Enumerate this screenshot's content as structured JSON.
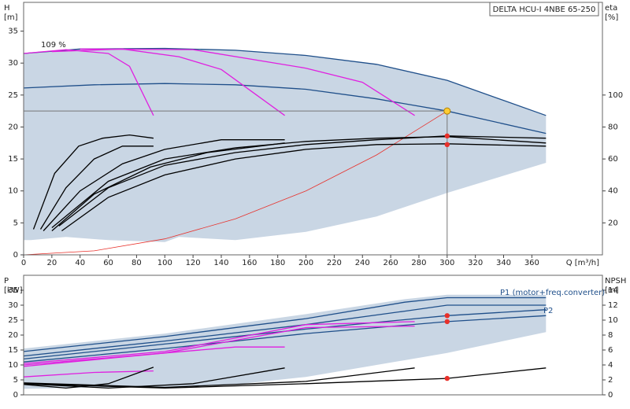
{
  "chart_data": [
    {
      "type": "line",
      "title": "DELTA HCU-I 4NBE 65-250",
      "xlabel": "Q [m³/h]",
      "ylabel": [
        "H",
        "[m]"
      ],
      "y2label": [
        "eta",
        "[%]"
      ],
      "xlim": [
        0,
        410
      ],
      "xticks": [
        0,
        20,
        40,
        60,
        80,
        100,
        120,
        140,
        160,
        180,
        200,
        220,
        240,
        260,
        280,
        300,
        320,
        340,
        360
      ],
      "ylim": [
        0,
        39.5
      ],
      "yticks": [
        0,
        5,
        10,
        15,
        20,
        25,
        30,
        35
      ],
      "y2lim": [
        0,
        158
      ],
      "y2ticks": [
        20,
        40,
        60,
        80,
        100
      ],
      "annotations": [
        "109 %"
      ],
      "series": [
        {
          "color": "#c9d6e4",
          "fill": true,
          "x": [
            0,
            40,
            100,
            150,
            200,
            250,
            300,
            370,
            370,
            300,
            250,
            200,
            150,
            110,
            100,
            60,
            30,
            5,
            0
          ],
          "values": [
            31.5,
            32.2,
            32.3,
            32,
            31.2,
            29.8,
            27.3,
            21.8,
            14.4,
            9.7,
            6,
            3.6,
            2.3,
            2.8,
            2,
            2.3,
            2.8,
            2.3,
            2.3
          ]
        },
        {
          "color": "#1f4f8a",
          "x": [
            0,
            40,
            100,
            150,
            200,
            250,
            300,
            370
          ],
          "values": [
            31.5,
            32.2,
            32.3,
            32,
            31.2,
            29.8,
            27.3,
            21.8
          ]
        },
        {
          "color": "#1f4f8a",
          "x": [
            0,
            50,
            100,
            150,
            200,
            250,
            300,
            370
          ],
          "values": [
            26.1,
            26.6,
            26.8,
            26.6,
            25.9,
            24.4,
            22.5,
            19
          ]
        },
        {
          "color": "#e8302a",
          "x": [
            0,
            50,
            100,
            150,
            200,
            250,
            300
          ],
          "values": [
            0,
            0.63,
            2.5,
            5.63,
            10,
            15.63,
            22.5
          ]
        },
        {
          "color": "#e020e0",
          "x": [
            0,
            30,
            60,
            75,
            92
          ],
          "values": [
            31.5,
            32.1,
            31.5,
            29.5,
            21.8
          ]
        },
        {
          "color": "#e020e0",
          "x": [
            20,
            70,
            110,
            140,
            165,
            185
          ],
          "values": [
            31.8,
            32.2,
            31,
            29,
            25,
            21.8
          ]
        },
        {
          "color": "#e020e0",
          "x": [
            40,
            120,
            200,
            240,
            277
          ],
          "values": [
            32.2,
            32.1,
            29.2,
            27,
            21.8
          ]
        },
        {
          "color": "#000000",
          "axis": "y2",
          "x": [
            7,
            22,
            39,
            56,
            75,
            92
          ],
          "values": [
            16,
            51,
            68,
            73,
            75,
            73
          ]
        },
        {
          "color": "#000000",
          "axis": "y2",
          "x": [
            12,
            30,
            50,
            70,
            92
          ],
          "values": [
            16,
            42,
            60,
            68,
            68
          ]
        },
        {
          "color": "#000000",
          "axis": "y2",
          "x": [
            14,
            40,
            70,
            100,
            140,
            185
          ],
          "values": [
            15,
            40,
            57,
            66,
            72,
            72
          ]
        },
        {
          "color": "#000000",
          "axis": "y2",
          "x": [
            20,
            50,
            90,
            130,
            185
          ],
          "values": [
            15,
            38,
            55,
            64,
            70
          ]
        },
        {
          "color": "#000000",
          "axis": "y2",
          "x": [
            27,
            60,
            100,
            150,
            200,
            250,
            300,
            370
          ],
          "values": [
            15,
            36,
            50,
            60,
            66,
            69,
            69.5,
            68
          ]
        },
        {
          "color": "#000000",
          "axis": "y2",
          "x": [
            25,
            60,
            100,
            150,
            200,
            250,
            300,
            370
          ],
          "values": [
            18,
            42,
            56,
            64,
            69,
            72,
            74.4,
            73
          ]
        },
        {
          "color": "#000000",
          "axis": "y2",
          "x": [
            20,
            60,
            100,
            150,
            200,
            250,
            300,
            370
          ],
          "values": [
            17,
            46,
            60,
            67,
            71,
            73,
            74,
            70
          ]
        }
      ],
      "points": [
        {
          "x": 300,
          "y": 22.5,
          "color": "#ffcc33",
          "guides": true
        },
        {
          "x": 300,
          "y": 74.4,
          "axis": "y2",
          "color": "#e8302a"
        },
        {
          "x": 300,
          "y": 69,
          "axis": "y2",
          "color": "#e8302a"
        }
      ]
    },
    {
      "type": "line",
      "ylabel": [
        "P",
        "[kW]"
      ],
      "y2label": [
        "NPSH",
        "[m]"
      ],
      "xlim": [
        0,
        410
      ],
      "ylim": [
        0,
        40
      ],
      "yticks": [
        0,
        5,
        10,
        15,
        20,
        25,
        30,
        35
      ],
      "y2lim": [
        0,
        16
      ],
      "y2ticks": [
        0,
        2,
        4,
        6,
        8,
        10,
        12,
        14
      ],
      "annotations": [
        "P1 (motor+freq.converter)",
        "P2"
      ],
      "series": [
        {
          "color": "#c9d6e4",
          "fill": true,
          "x": [
            0,
            100,
            200,
            270,
            300,
            370,
            370,
            300,
            250,
            200,
            150,
            100,
            50,
            0
          ],
          "values": [
            15.5,
            20.5,
            27,
            32,
            33.5,
            33.5,
            21,
            14,
            10,
            6,
            3.5,
            2.5,
            2.5,
            2
          ]
        },
        {
          "color": "#1f4f8a",
          "x": [
            0,
            100,
            200,
            270,
            300,
            370
          ],
          "values": [
            14.5,
            19.5,
            25.5,
            31,
            32.5,
            32.5
          ]
        },
        {
          "color": "#1f4f8a",
          "x": [
            0,
            100,
            200,
            270,
            300,
            370
          ],
          "values": [
            13,
            18,
            23.5,
            28,
            30,
            30
          ]
        },
        {
          "color": "#1f4f8a",
          "x": [
            0,
            100,
            200,
            300,
            370
          ],
          "values": [
            12,
            17,
            22,
            26.5,
            28.5
          ]
        },
        {
          "color": "#1f4f8a",
          "x": [
            0,
            100,
            200,
            300,
            370
          ],
          "values": [
            11,
            15.5,
            20.5,
            24.5,
            26.5
          ]
        },
        {
          "color": "#e020e0",
          "x": [
            0,
            50,
            92
          ],
          "values": [
            6,
            7.5,
            8
          ]
        },
        {
          "color": "#e020e0",
          "x": [
            0,
            100,
            150,
            185
          ],
          "values": [
            9.5,
            14,
            16,
            16
          ]
        },
        {
          "color": "#e020e0",
          "x": [
            0,
            100,
            200,
            277
          ],
          "values": [
            10.5,
            14.5,
            23.5,
            24.5
          ]
        },
        {
          "color": "#e020e0",
          "x": [
            0,
            100,
            200,
            277
          ],
          "values": [
            10,
            14,
            22.5,
            23
          ]
        },
        {
          "color": "#000000",
          "axis": "y2",
          "x": [
            0,
            30,
            60,
            92
          ],
          "values": [
            1.4,
            0.9,
            1.5,
            3.7
          ]
        },
        {
          "color": "#000000",
          "axis": "y2",
          "x": [
            0,
            60,
            120,
            185
          ],
          "values": [
            1.5,
            0.9,
            1.5,
            3.6
          ]
        },
        {
          "color": "#000000",
          "axis": "y2",
          "x": [
            0,
            100,
            200,
            277
          ],
          "values": [
            1.6,
            1,
            1.8,
            3.6
          ]
        },
        {
          "color": "#000000",
          "axis": "y2",
          "x": [
            0,
            100,
            200,
            300,
            370
          ],
          "values": [
            1.5,
            0.9,
            1.5,
            2.2,
            3.6
          ]
        }
      ],
      "points": [
        {
          "x": 300,
          "y": 26.5,
          "color": "#e8302a"
        },
        {
          "x": 300,
          "y": 24.5,
          "color": "#e8302a"
        },
        {
          "x": 300,
          "y": 2.2,
          "axis": "y2",
          "color": "#e8302a"
        }
      ]
    }
  ]
}
